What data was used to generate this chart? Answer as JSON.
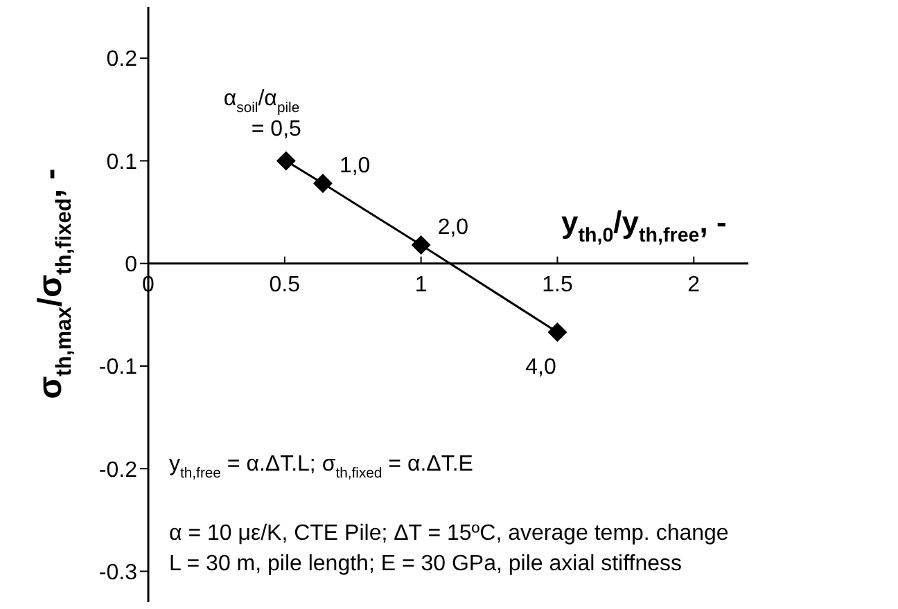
{
  "chart_data": {
    "type": "line",
    "xlabel": "y$_{th,0}$/y$_{th,free}$, -",
    "ylabel": "σ$_{th,max}$/σ$_{th,fixed}$, -",
    "x": [
      0.505,
      0.64,
      1.0,
      1.5
    ],
    "series": [
      {
        "color": "#000000",
        "values": [
          0.1,
          0.078,
          0.018,
          -0.067
        ]
      }
    ],
    "marker": "diamond",
    "line_style": "solid",
    "xlim": [
      0,
      2.2
    ],
    "xticks": [
      0,
      0.5,
      1,
      1.5,
      2
    ],
    "ylim": [
      -0.33,
      0.25
    ],
    "yticks": [
      -0.3,
      -0.2,
      -0.1,
      0,
      0.1,
      0.2
    ],
    "annotations": [
      {
        "text": "α$_{soil}$/α$_{pile}$ = 0,5",
        "x": 0.505,
        "y": 0.1
      },
      {
        "text": "1,0",
        "x": 0.64,
        "y": 0.078
      },
      {
        "text": "2,0",
        "x": 1.0,
        "y": 0.018
      },
      {
        "text": "4,0",
        "x": 1.5,
        "y": -0.067
      },
      "y$_{th,free}$ = α.ΔT.L; σ$_{th,fixed}$ = α.ΔT.E",
      "α = 10 με/K, CTE Pile; ΔT = 15ºC, average temp. change",
      "L = 30 m, pile length; E = 30 GPa, pile axial stiffness"
    ]
  }
}
